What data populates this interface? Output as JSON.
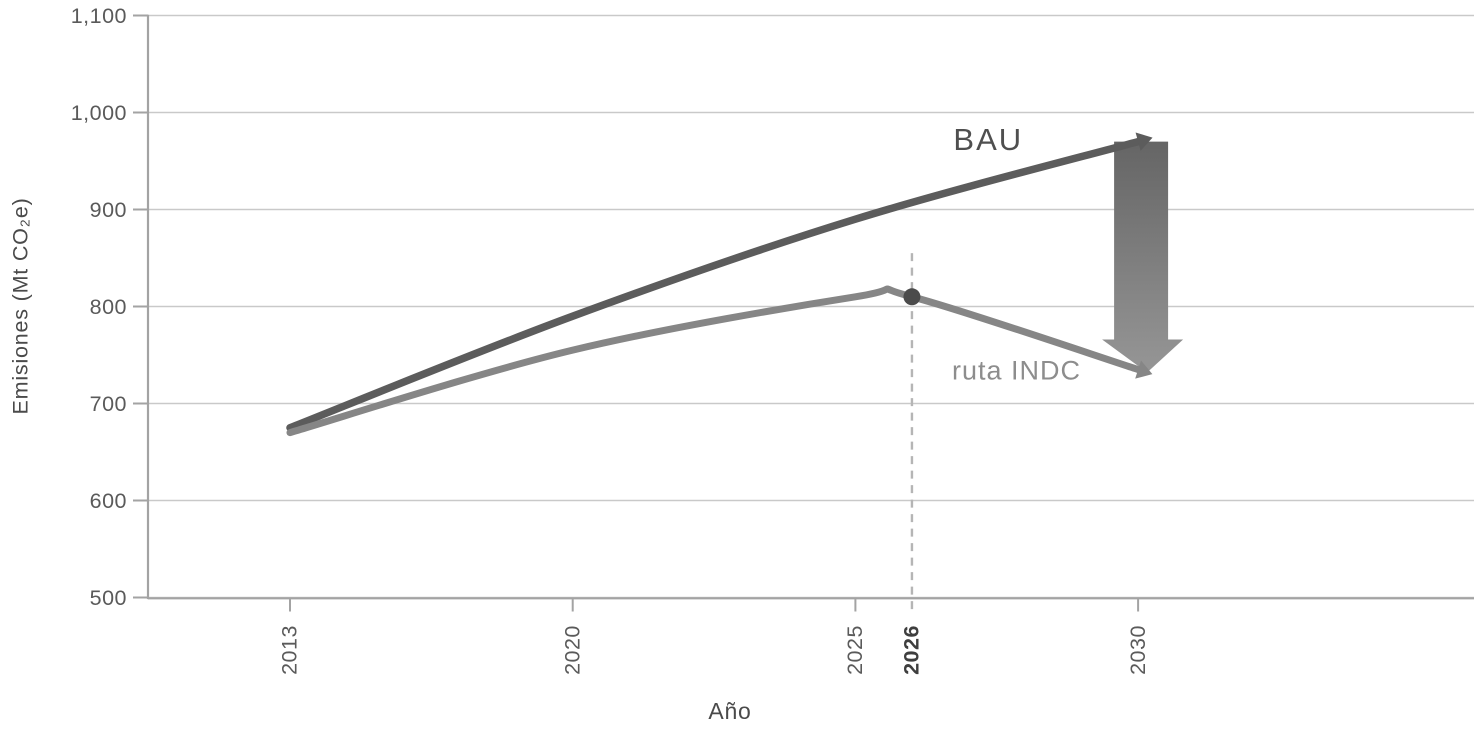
{
  "figure": {
    "background": "#ffffff"
  },
  "chart_data": {
    "type": "line",
    "title": "",
    "xlabel": "Año",
    "ylabel": "Emisiones (Mt CO₂e)",
    "ylim": [
      500,
      1100
    ],
    "grid": "horizontal",
    "legend_position": "inline-labels",
    "x_axis_anchor_years": [
      2013,
      2020,
      2025,
      2030
    ],
    "y_ticks": [
      {
        "value": 1100,
        "label": "1,100"
      },
      {
        "value": 1000,
        "label": "1,000"
      },
      {
        "value": 900,
        "label": "900"
      },
      {
        "value": 800,
        "label": "800"
      },
      {
        "value": 700,
        "label": "700"
      },
      {
        "value": 600,
        "label": "600"
      },
      {
        "value": 500,
        "label": "500"
      }
    ],
    "x_ticks": [
      {
        "year": 2013,
        "label": "2013",
        "bold": false
      },
      {
        "year": 2020,
        "label": "2020",
        "bold": false
      },
      {
        "year": 2025,
        "label": "2025",
        "bold": false
      },
      {
        "year": 2026,
        "label": "2026",
        "bold": true
      },
      {
        "year": 2030,
        "label": "2030",
        "bold": false
      }
    ],
    "series": [
      {
        "name": "BAU",
        "color": "#5c5c5c",
        "width": 7.5,
        "end_arrow": true,
        "points": [
          [
            2013,
            675
          ],
          [
            2020,
            790
          ],
          [
            2025,
            890
          ],
          [
            2030,
            970
          ]
        ]
      },
      {
        "name": "ruta INDC",
        "color": "#868686",
        "width": 7,
        "end_arrow": true,
        "points": [
          [
            2013,
            670
          ],
          [
            2020,
            755
          ],
          [
            2025,
            810
          ],
          [
            2026,
            810
          ],
          [
            2030,
            735
          ]
        ]
      }
    ],
    "annotations": {
      "bau_label": {
        "text": "BAU",
        "year": 2027.35,
        "value": 970,
        "color": "#4f4f4f",
        "size": 31
      },
      "indc_label": {
        "text": "ruta INDC",
        "year": 2027.85,
        "value": 732,
        "color": "#8d8d8d",
        "size": 27
      },
      "marker_2026": {
        "year": 2026,
        "value": 810,
        "dot_color": "#4b4b4b",
        "guide_color": "#b5b5b5",
        "guide_top_value": 855
      },
      "gap_arrow": {
        "year": 2030,
        "from_value": 970,
        "to_value": 735,
        "color_top": "#656565",
        "color_bottom": "#969696"
      }
    },
    "axis_style": {
      "grid_color": "#c9c9c9",
      "axis_color": "#a3a3a3",
      "tick_label_color": "#5a5a5a",
      "bold_tick_label_color": "#3e3e3e",
      "axis_title_color": "#4a4a4a"
    }
  }
}
